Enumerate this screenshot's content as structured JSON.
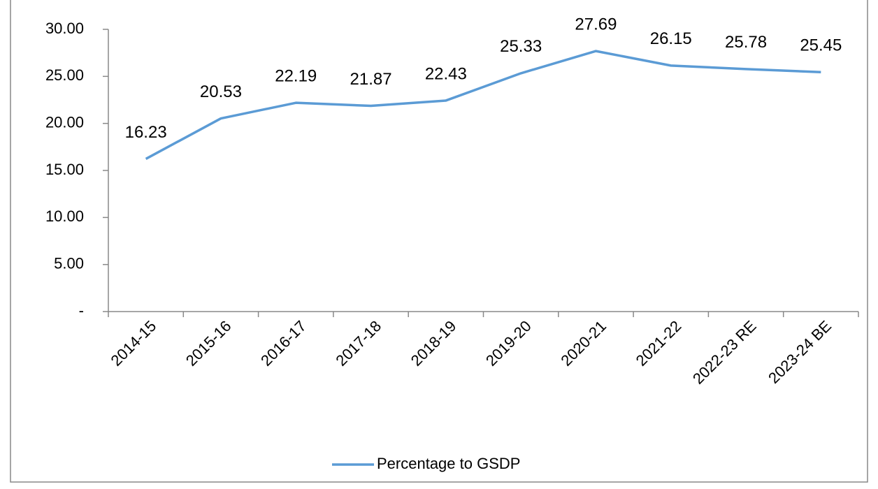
{
  "chart_data": {
    "type": "line",
    "categories": [
      "2014-15",
      "2015-16",
      "2016-17",
      "2017-18",
      "2018-19",
      "2019-20",
      "2020-21",
      "2021-22",
      "2022-23 RE",
      "2023-24 BE"
    ],
    "series": [
      {
        "name": "Percentage to GSDP",
        "color": "#5b9bd5",
        "values": [
          16.23,
          20.53,
          22.19,
          21.87,
          22.43,
          25.33,
          27.69,
          26.15,
          25.78,
          25.45
        ]
      }
    ],
    "ylim": [
      0,
      30
    ],
    "yticks": [
      {
        "value": 0,
        "label": "-"
      },
      {
        "value": 5,
        "label": "5.00"
      },
      {
        "value": 10,
        "label": "10.00"
      },
      {
        "value": 15,
        "label": "15.00"
      },
      {
        "value": 20,
        "label": "20.00"
      },
      {
        "value": 25,
        "label": "25.00"
      },
      {
        "value": 30,
        "label": "30.00"
      }
    ],
    "legend": "bottom"
  }
}
